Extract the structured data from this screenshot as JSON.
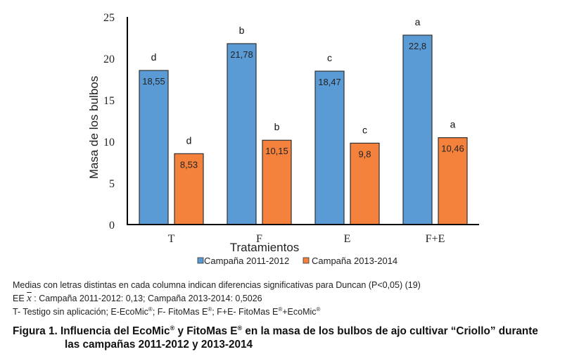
{
  "chart_data": {
    "type": "bar",
    "title": "",
    "xlabel": "Tratamientos",
    "ylabel": "Masa de los bulbos",
    "ylim": [
      0,
      25
    ],
    "yticks": [
      0,
      5,
      10,
      15,
      20,
      25
    ],
    "categories": [
      "T",
      "F",
      "E",
      "F+E"
    ],
    "series": [
      {
        "name": "Campaña 2011-2012",
        "color": "#5b9bd5",
        "values": [
          18.55,
          21.78,
          18.47,
          22.8
        ],
        "value_labels": [
          "18,55",
          "21,78",
          "18,47",
          "22,8"
        ],
        "significance": [
          "d",
          "b",
          "c",
          "a"
        ]
      },
      {
        "name": "Campaña 2013-2014",
        "color": "#f4823c",
        "values": [
          8.53,
          10.15,
          9.8,
          10.46
        ],
        "value_labels": [
          "8,53",
          "10,15",
          "9,8",
          "10,46"
        ],
        "significance": [
          "d",
          "b",
          "c",
          "a"
        ]
      }
    ],
    "grid": false,
    "legend_position": "bottom"
  },
  "notes": {
    "line1": "Medias con letras distintas en cada columna indican diferencias significativas para Duncan (P<0,05) (19)",
    "line2_prefix": "EE ",
    "line2_symbol": "x",
    "line2_rest": " : Campaña 2011-2012: 0,13; Campaña 2013-2014: 0,5026",
    "line3_parts": [
      "T- Testigo sin aplicación; E-EcoMic",
      "®",
      "; F- FitoMas E",
      "®",
      "; F+E- FitoMas E",
      "®",
      "+EcoMic",
      "®"
    ]
  },
  "caption": {
    "line1_parts": [
      "Figura 1. Influencia del EcoMic",
      "®",
      " y FitoMas E",
      "®",
      " en la masa de los bulbos de ajo cultivar “Criollo” durante"
    ],
    "line2": "las campañas 2011-2012 y 2013-2014"
  }
}
